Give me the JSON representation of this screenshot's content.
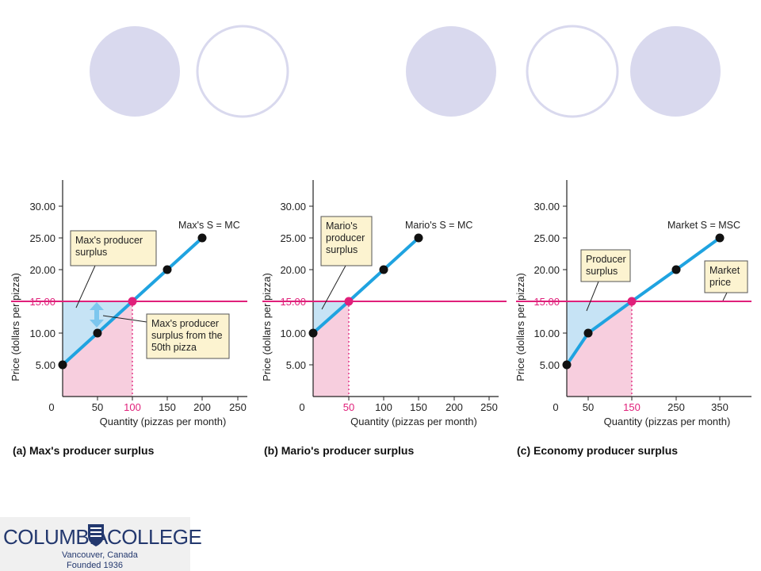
{
  "colors": {
    "supply_line": "#1fa3e0",
    "price_line": "#e0207a",
    "producer_surplus_fill": "#c6e3f5",
    "cost_fill": "#f7cede",
    "callout_bg": "#fcf3d0",
    "deco_circle": "#d9d9ee"
  },
  "chart_data": [
    {
      "type": "line",
      "panel_caption": "(a) Max's producer surplus",
      "xlabel": "Quantity (pizzas per month)",
      "ylabel": "Price (dollars per pizza)",
      "xlim": [
        0,
        260
      ],
      "ylim": [
        0,
        35
      ],
      "x_ticks": [
        0,
        50,
        100,
        150,
        200,
        250
      ],
      "y_ticks": [
        "5.00",
        "10.00",
        "15.00",
        "20.00",
        "25.00",
        "30.00"
      ],
      "highlight_x_tick": "100",
      "highlight_y_tick": "15.00",
      "market_price": 15,
      "equilibrium": {
        "x": 100,
        "y": 15
      },
      "series": [
        {
          "name": "Max's S = MC",
          "x": [
            0,
            50,
            100,
            150,
            200
          ],
          "y": [
            5,
            10,
            15,
            20,
            25
          ]
        }
      ],
      "annotations": [
        {
          "text": [
            "Max's producer",
            "surplus"
          ]
        },
        {
          "text": [
            "Max's producer",
            "surplus from the",
            "50th pizza"
          ]
        }
      ]
    },
    {
      "type": "line",
      "panel_caption": "(b) Mario's producer surplus",
      "xlabel": "Quantity (pizzas per month)",
      "ylabel": "Price (dollars per pizza)",
      "xlim": [
        0,
        260
      ],
      "ylim": [
        0,
        35
      ],
      "x_ticks": [
        0,
        50,
        100,
        150,
        200,
        250
      ],
      "y_ticks": [
        "5.00",
        "10.00",
        "15.00",
        "20.00",
        "25.00",
        "30.00"
      ],
      "highlight_x_tick": "50",
      "highlight_y_tick": "15.00",
      "market_price": 15,
      "equilibrium": {
        "x": 50,
        "y": 15
      },
      "series": [
        {
          "name": "Mario's S = MC",
          "x": [
            0,
            50,
            100,
            150
          ],
          "y": [
            10,
            15,
            20,
            25
          ]
        }
      ],
      "annotations": [
        {
          "text": [
            "Mario's",
            "producer",
            "surplus"
          ]
        }
      ]
    },
    {
      "type": "line",
      "panel_caption": "(c) Economy producer surplus",
      "xlabel": "Quantity (pizzas per month)",
      "ylabel": "Price (dollars per pizza)",
      "xlim": [
        0,
        420
      ],
      "ylim": [
        0,
        35
      ],
      "x_ticks": [
        0,
        50,
        150,
        250,
        350
      ],
      "y_ticks": [
        "5.00",
        "10.00",
        "15.00",
        "20.00",
        "25.00",
        "30.00"
      ],
      "highlight_x_tick": "150",
      "highlight_y_tick": "15.00",
      "market_price": 15,
      "equilibrium": {
        "x": 150,
        "y": 15
      },
      "series": [
        {
          "name": "Market S = MSC",
          "x": [
            0,
            50,
            150,
            250,
            350
          ],
          "y": [
            5,
            10,
            15,
            20,
            25
          ]
        }
      ],
      "annotations": [
        {
          "text": [
            "Producer",
            "surplus"
          ]
        },
        {
          "text": [
            "Market",
            "price"
          ]
        }
      ]
    }
  ],
  "logo": {
    "name": "COLUMBIA",
    "name2": "COLLEGE",
    "line1": "Vancouver, Canada",
    "line2": "Founded 1936"
  }
}
